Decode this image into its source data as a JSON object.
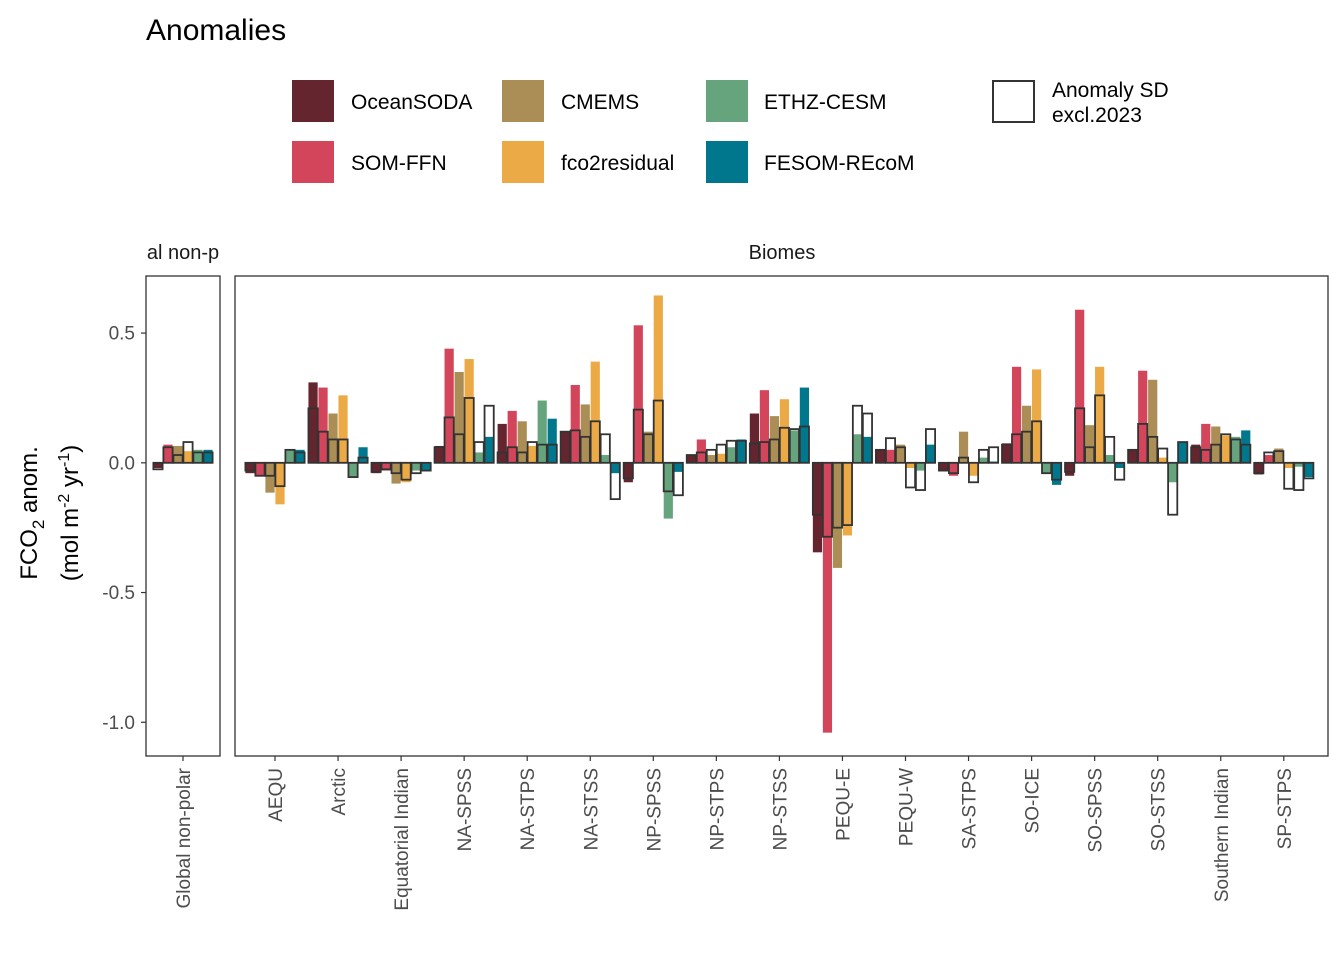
{
  "title": "Anomalies",
  "legend": {
    "items": [
      {
        "name": "OceanSODA",
        "color": "#65252F"
      },
      {
        "name": "SOM-FFN",
        "color": "#D3455B"
      },
      {
        "name": "CMEMS",
        "color": "#AB8E55"
      },
      {
        "name": "fco2residual",
        "color": "#EBAA45"
      },
      {
        "name": "ETHZ-CESM",
        "color": "#66A47E"
      },
      {
        "name": "FESOM-REcoM",
        "color": "#00778C"
      }
    ],
    "sd_label_line1": "Anomaly SD",
    "sd_label_line2": "excl.2023"
  },
  "chart_data": {
    "type": "bar",
    "ylabel_line1": "FCO2 anom.",
    "ylabel_line2": "(mol m-2 yr-1)",
    "yticks": [
      0.5,
      0.0,
      -0.5,
      -1.0
    ],
    "ytick_labels": [
      "0.5",
      "0.0",
      "-0.5",
      "-1.0"
    ],
    "ylim": [
      -1.13,
      0.72
    ],
    "series_names": [
      "OceanSODA",
      "SOM-FFN",
      "CMEMS",
      "fco2residual",
      "ETHZ-CESM",
      "FESOM-REcoM"
    ],
    "panels": [
      {
        "strip": "al non-p",
        "categories": [
          {
            "label": "Global non-polar",
            "values": [
              -0.02,
              0.07,
              0.065,
              0.045,
              0.05,
              0.05
            ],
            "sd": [
              0.025,
              0.06,
              0.03,
              0.08,
              0.04,
              0.04
            ]
          }
        ]
      },
      {
        "strip": "Biomes",
        "categories": [
          {
            "label": "AEQU",
            "values": [
              -0.04,
              -0.05,
              -0.115,
              -0.16,
              0.05,
              0.05
            ],
            "sd": [
              0.03,
              0.05,
              0.05,
              0.09,
              0.05,
              0.04
            ]
          },
          {
            "label": "Arctic",
            "values": [
              0.31,
              0.29,
              0.19,
              0.26,
              -0.055,
              0.06
            ],
            "sd": [
              0.21,
              0.12,
              0.09,
              0.09,
              0.055,
              0.02
            ]
          },
          {
            "label": "Equatorial Indian",
            "values": [
              -0.04,
              -0.03,
              -0.08,
              -0.075,
              -0.03,
              -0.03
            ],
            "sd": [
              0.035,
              0.025,
              0.04,
              0.065,
              0.04,
              0.03
            ]
          },
          {
            "label": "NA-SPSS",
            "values": [
              0.065,
              0.44,
              0.35,
              0.4,
              0.04,
              0.1
            ],
            "sd": [
              0.06,
              0.175,
              0.11,
              0.25,
              0.08,
              0.22
            ]
          },
          {
            "label": "NA-STPS",
            "values": [
              0.15,
              0.2,
              0.16,
              0.065,
              0.24,
              0.17
            ],
            "sd": [
              0.04,
              0.06,
              0.04,
              0.08,
              0.07,
              0.07
            ]
          },
          {
            "label": "NA-STSS",
            "values": [
              0.12,
              0.3,
              0.225,
              0.39,
              0.03,
              -0.04
            ],
            "sd": [
              0.12,
              0.125,
              0.1,
              0.16,
              0.11,
              0.14
            ]
          },
          {
            "label": "NP-SPSS",
            "values": [
              -0.075,
              0.53,
              0.12,
              0.645,
              -0.215,
              -0.035
            ],
            "sd": [
              0.06,
              0.205,
              0.11,
              0.24,
              0.11,
              0.125
            ]
          },
          {
            "label": "NP-STPS",
            "values": [
              0.03,
              0.09,
              0.03,
              0.035,
              0.06,
              0.09
            ],
            "sd": [
              0.03,
              0.04,
              0.05,
              0.07,
              0.085,
              0.085
            ]
          },
          {
            "label": "NP-STSS",
            "values": [
              0.19,
              0.28,
              0.18,
              0.245,
              0.125,
              0.29
            ],
            "sd": [
              0.075,
              0.08,
              0.09,
              0.135,
              0.13,
              0.14
            ]
          },
          {
            "label": "PEQU-E",
            "values": [
              -0.345,
              -1.04,
              -0.405,
              -0.28,
              0.11,
              0.1
            ],
            "sd": [
              0.2,
              0.285,
              0.25,
              0.24,
              0.22,
              0.19
            ]
          },
          {
            "label": "PEQU-W",
            "values": [
              0.05,
              0.05,
              0.07,
              -0.02,
              -0.03,
              0.07
            ],
            "sd": [
              0.05,
              0.095,
              0.06,
              0.095,
              0.105,
              0.13
            ]
          },
          {
            "label": "SA-STPS",
            "values": [
              -0.03,
              -0.05,
              0.12,
              -0.05,
              0.02,
              0.005
            ],
            "sd": [
              0.03,
              0.04,
              0.02,
              0.075,
              0.05,
              0.06
            ]
          },
          {
            "label": "SO-ICE",
            "values": [
              0.075,
              0.37,
              0.22,
              0.36,
              -0.04,
              -0.085
            ],
            "sd": [
              0.07,
              0.11,
              0.12,
              0.16,
              0.04,
              0.065
            ]
          },
          {
            "label": "SO-SPSS",
            "values": [
              -0.05,
              0.59,
              0.145,
              0.37,
              0.03,
              -0.02
            ],
            "sd": [
              0.035,
              0.21,
              0.06,
              0.26,
              0.1,
              0.065
            ]
          },
          {
            "label": "SO-STSS",
            "values": [
              0.05,
              0.355,
              0.32,
              0.02,
              -0.075,
              0.08
            ],
            "sd": [
              0.05,
              0.15,
              0.1,
              0.055,
              0.2,
              0.08
            ]
          },
          {
            "label": "Southern Indian",
            "values": [
              0.07,
              0.15,
              0.14,
              0.105,
              0.1,
              0.125
            ],
            "sd": [
              0.06,
              0.05,
              0.07,
              0.11,
              0.09,
              0.07
            ]
          },
          {
            "label": "SP-STPS",
            "values": [
              -0.045,
              0.03,
              0.055,
              -0.02,
              -0.015,
              -0.055
            ],
            "sd": [
              0.04,
              0.04,
              0.045,
              0.1,
              0.105,
              0.06
            ]
          }
        ]
      }
    ]
  }
}
